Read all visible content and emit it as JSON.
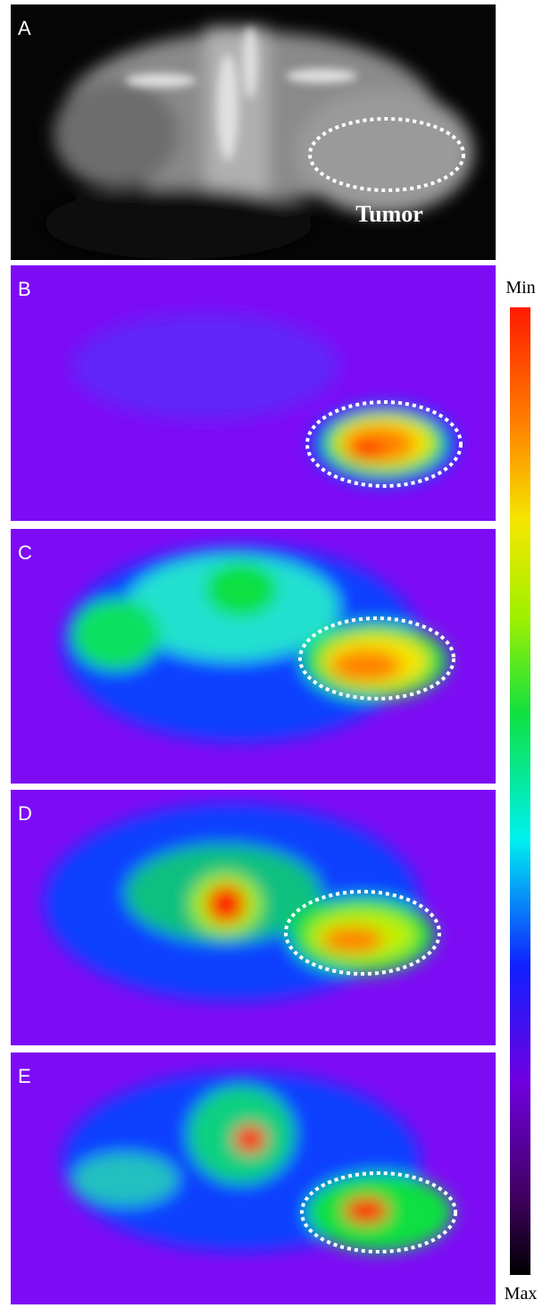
{
  "panels": [
    {
      "label": "A",
      "annotation": "Tumor"
    },
    {
      "label": "B"
    },
    {
      "label": "C"
    },
    {
      "label": "D"
    },
    {
      "label": "E"
    }
  ],
  "colorbar": {
    "top_label": "Min",
    "bottom_label": "Max"
  }
}
